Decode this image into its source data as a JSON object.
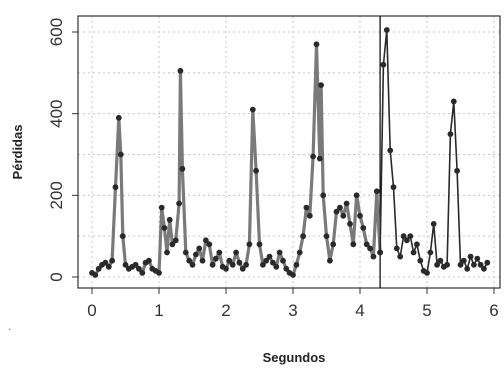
{
  "chart_data": {
    "type": "line",
    "xlabel": "Segundos",
    "ylabel": "Pérdidas",
    "side_mark": ".",
    "xlim": [
      0,
      6
    ],
    "ylim": [
      0,
      600
    ],
    "x_ticks": [
      "0",
      "1",
      "2",
      "3",
      "4",
      "5",
      "6"
    ],
    "y_ticks": [
      "0",
      "200",
      "400",
      "600"
    ],
    "grid": true,
    "grid_style": "dotted",
    "vertical_marker_x": 4.3,
    "colors": {
      "line_left": "#7a7a7a",
      "line_right": "#2a2a2a",
      "points": "#2a2a2a",
      "grid": "#c8c8c8",
      "frame": "#333333",
      "marker": "#000000"
    },
    "series": [
      {
        "x": [
          0.0,
          0.05,
          0.1,
          0.15,
          0.2,
          0.25,
          0.3,
          0.35,
          0.4,
          0.43,
          0.46,
          0.5,
          0.55,
          0.6,
          0.65,
          0.7,
          0.75,
          0.8,
          0.85,
          0.9,
          0.95,
          1.0,
          1.04,
          1.08,
          1.12,
          1.16,
          1.2,
          1.25,
          1.3,
          1.32,
          1.35,
          1.4,
          1.45,
          1.5,
          1.55,
          1.6,
          1.65,
          1.7,
          1.75,
          1.8,
          1.85,
          1.9,
          1.95,
          2.0,
          2.05,
          2.1,
          2.15,
          2.2,
          2.25,
          2.3,
          2.35,
          2.4,
          2.45,
          2.5,
          2.55,
          2.6,
          2.65,
          2.7,
          2.75,
          2.8,
          2.85,
          2.9,
          2.95,
          3.0,
          3.05,
          3.1,
          3.15,
          3.2,
          3.25,
          3.3,
          3.35,
          3.4,
          3.42,
          3.45,
          3.5,
          3.55,
          3.6,
          3.65,
          3.7,
          3.75,
          3.8,
          3.85,
          3.9,
          3.95,
          4.0,
          4.05,
          4.1,
          4.15,
          4.2,
          4.25,
          4.3
        ],
        "y": [
          10,
          5,
          20,
          30,
          35,
          25,
          40,
          220,
          390,
          300,
          100,
          30,
          20,
          25,
          30,
          20,
          10,
          35,
          40,
          20,
          15,
          10,
          170,
          120,
          60,
          140,
          80,
          90,
          180,
          505,
          265,
          60,
          40,
          30,
          55,
          70,
          40,
          90,
          80,
          30,
          45,
          60,
          25,
          20,
          40,
          30,
          60,
          35,
          20,
          30,
          80,
          410,
          260,
          80,
          30,
          40,
          50,
          35,
          25,
          60,
          40,
          20,
          10,
          5,
          30,
          60,
          100,
          170,
          150,
          295,
          570,
          290,
          470,
          200,
          100,
          40,
          80,
          160,
          170,
          150,
          180,
          130,
          80,
          200,
          150,
          120,
          80,
          70,
          50,
          210,
          60
        ]
      },
      {
        "x": [
          4.3,
          4.35,
          4.4,
          4.45,
          4.5,
          4.55,
          4.6,
          4.65,
          4.7,
          4.75,
          4.8,
          4.85,
          4.9,
          4.95,
          5.0,
          5.05,
          5.1,
          5.15,
          5.2,
          5.25,
          5.3,
          5.35,
          5.4,
          5.45,
          5.5,
          5.55,
          5.6,
          5.65,
          5.7,
          5.75,
          5.8,
          5.85,
          5.9
        ],
        "y": [
          60,
          520,
          605,
          310,
          220,
          70,
          50,
          100,
          90,
          100,
          60,
          80,
          40,
          15,
          10,
          60,
          130,
          30,
          40,
          25,
          30,
          350,
          430,
          260,
          30,
          40,
          20,
          50,
          30,
          45,
          30,
          20,
          35
        ]
      }
    ]
  }
}
